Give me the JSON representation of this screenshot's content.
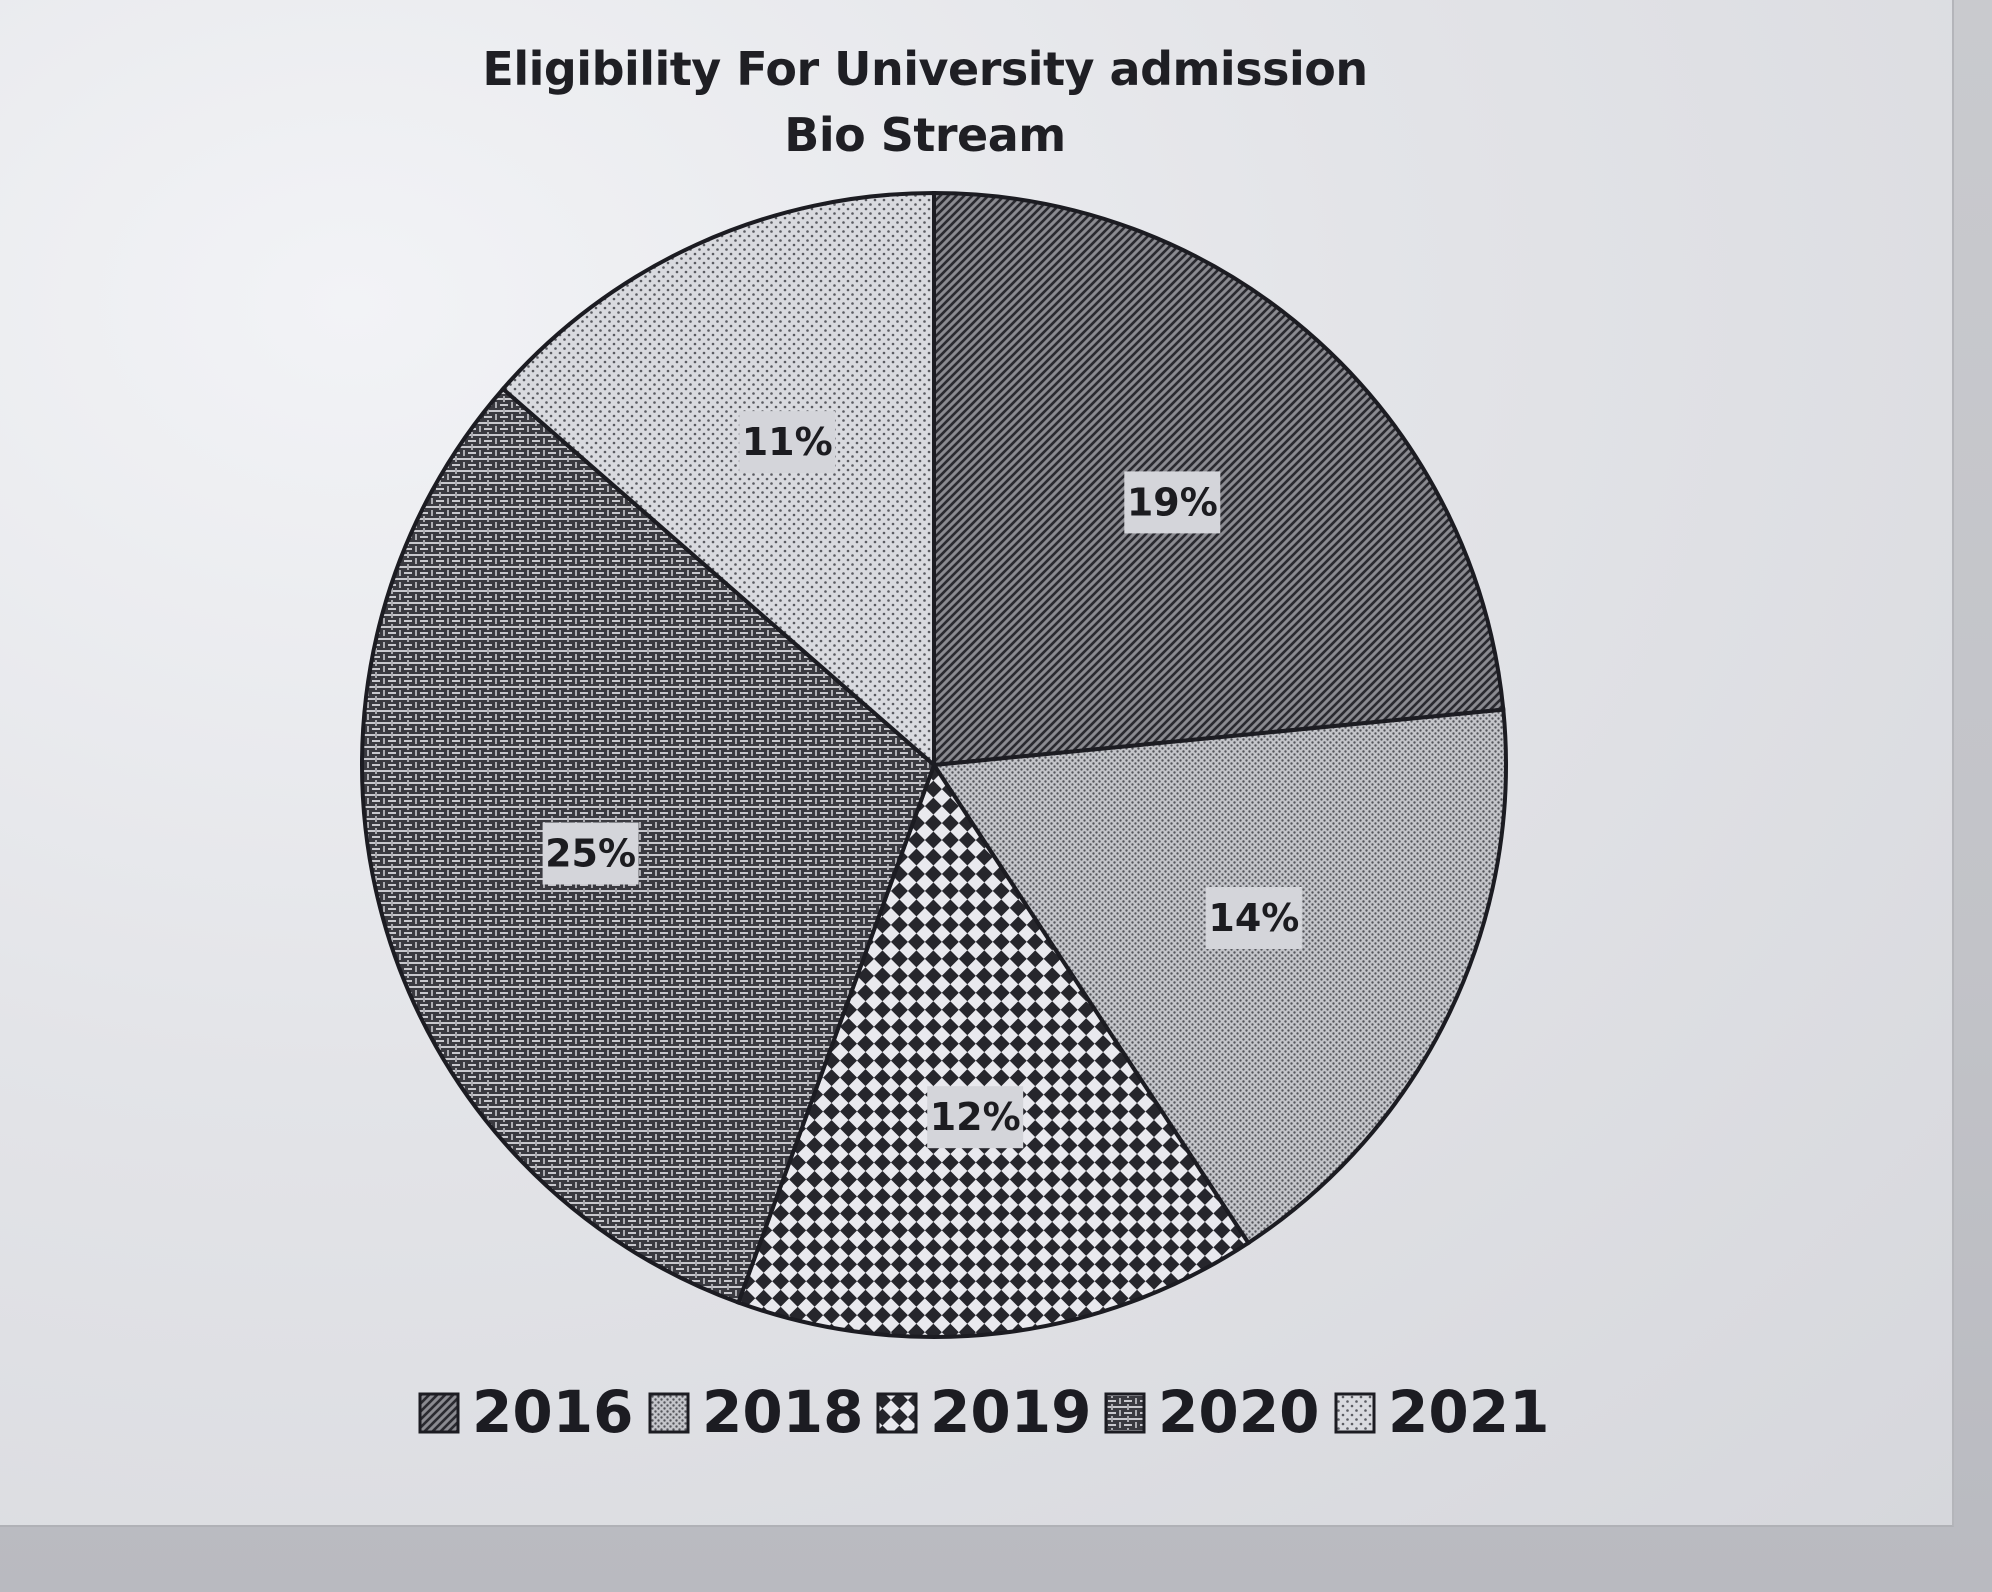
{
  "chart_data": {
    "type": "pie",
    "title": "Eligibility For University admission",
    "subtitle": "Bio Stream",
    "slices": [
      {
        "name": "2016",
        "label": "19%",
        "value": 19
      },
      {
        "name": "2018",
        "label": "14%",
        "value": 14
      },
      {
        "name": "2019",
        "label": "12%",
        "value": 12
      },
      {
        "name": "2020",
        "label": "25%",
        "value": 25
      },
      {
        "name": "2021",
        "label": "11%",
        "value": 11
      }
    ],
    "legend": [
      "2016",
      "2018",
      "2019",
      "2020",
      "2021"
    ],
    "legend_position": "bottom",
    "start_angle": "12 o'clock",
    "direction": "clockwise"
  }
}
